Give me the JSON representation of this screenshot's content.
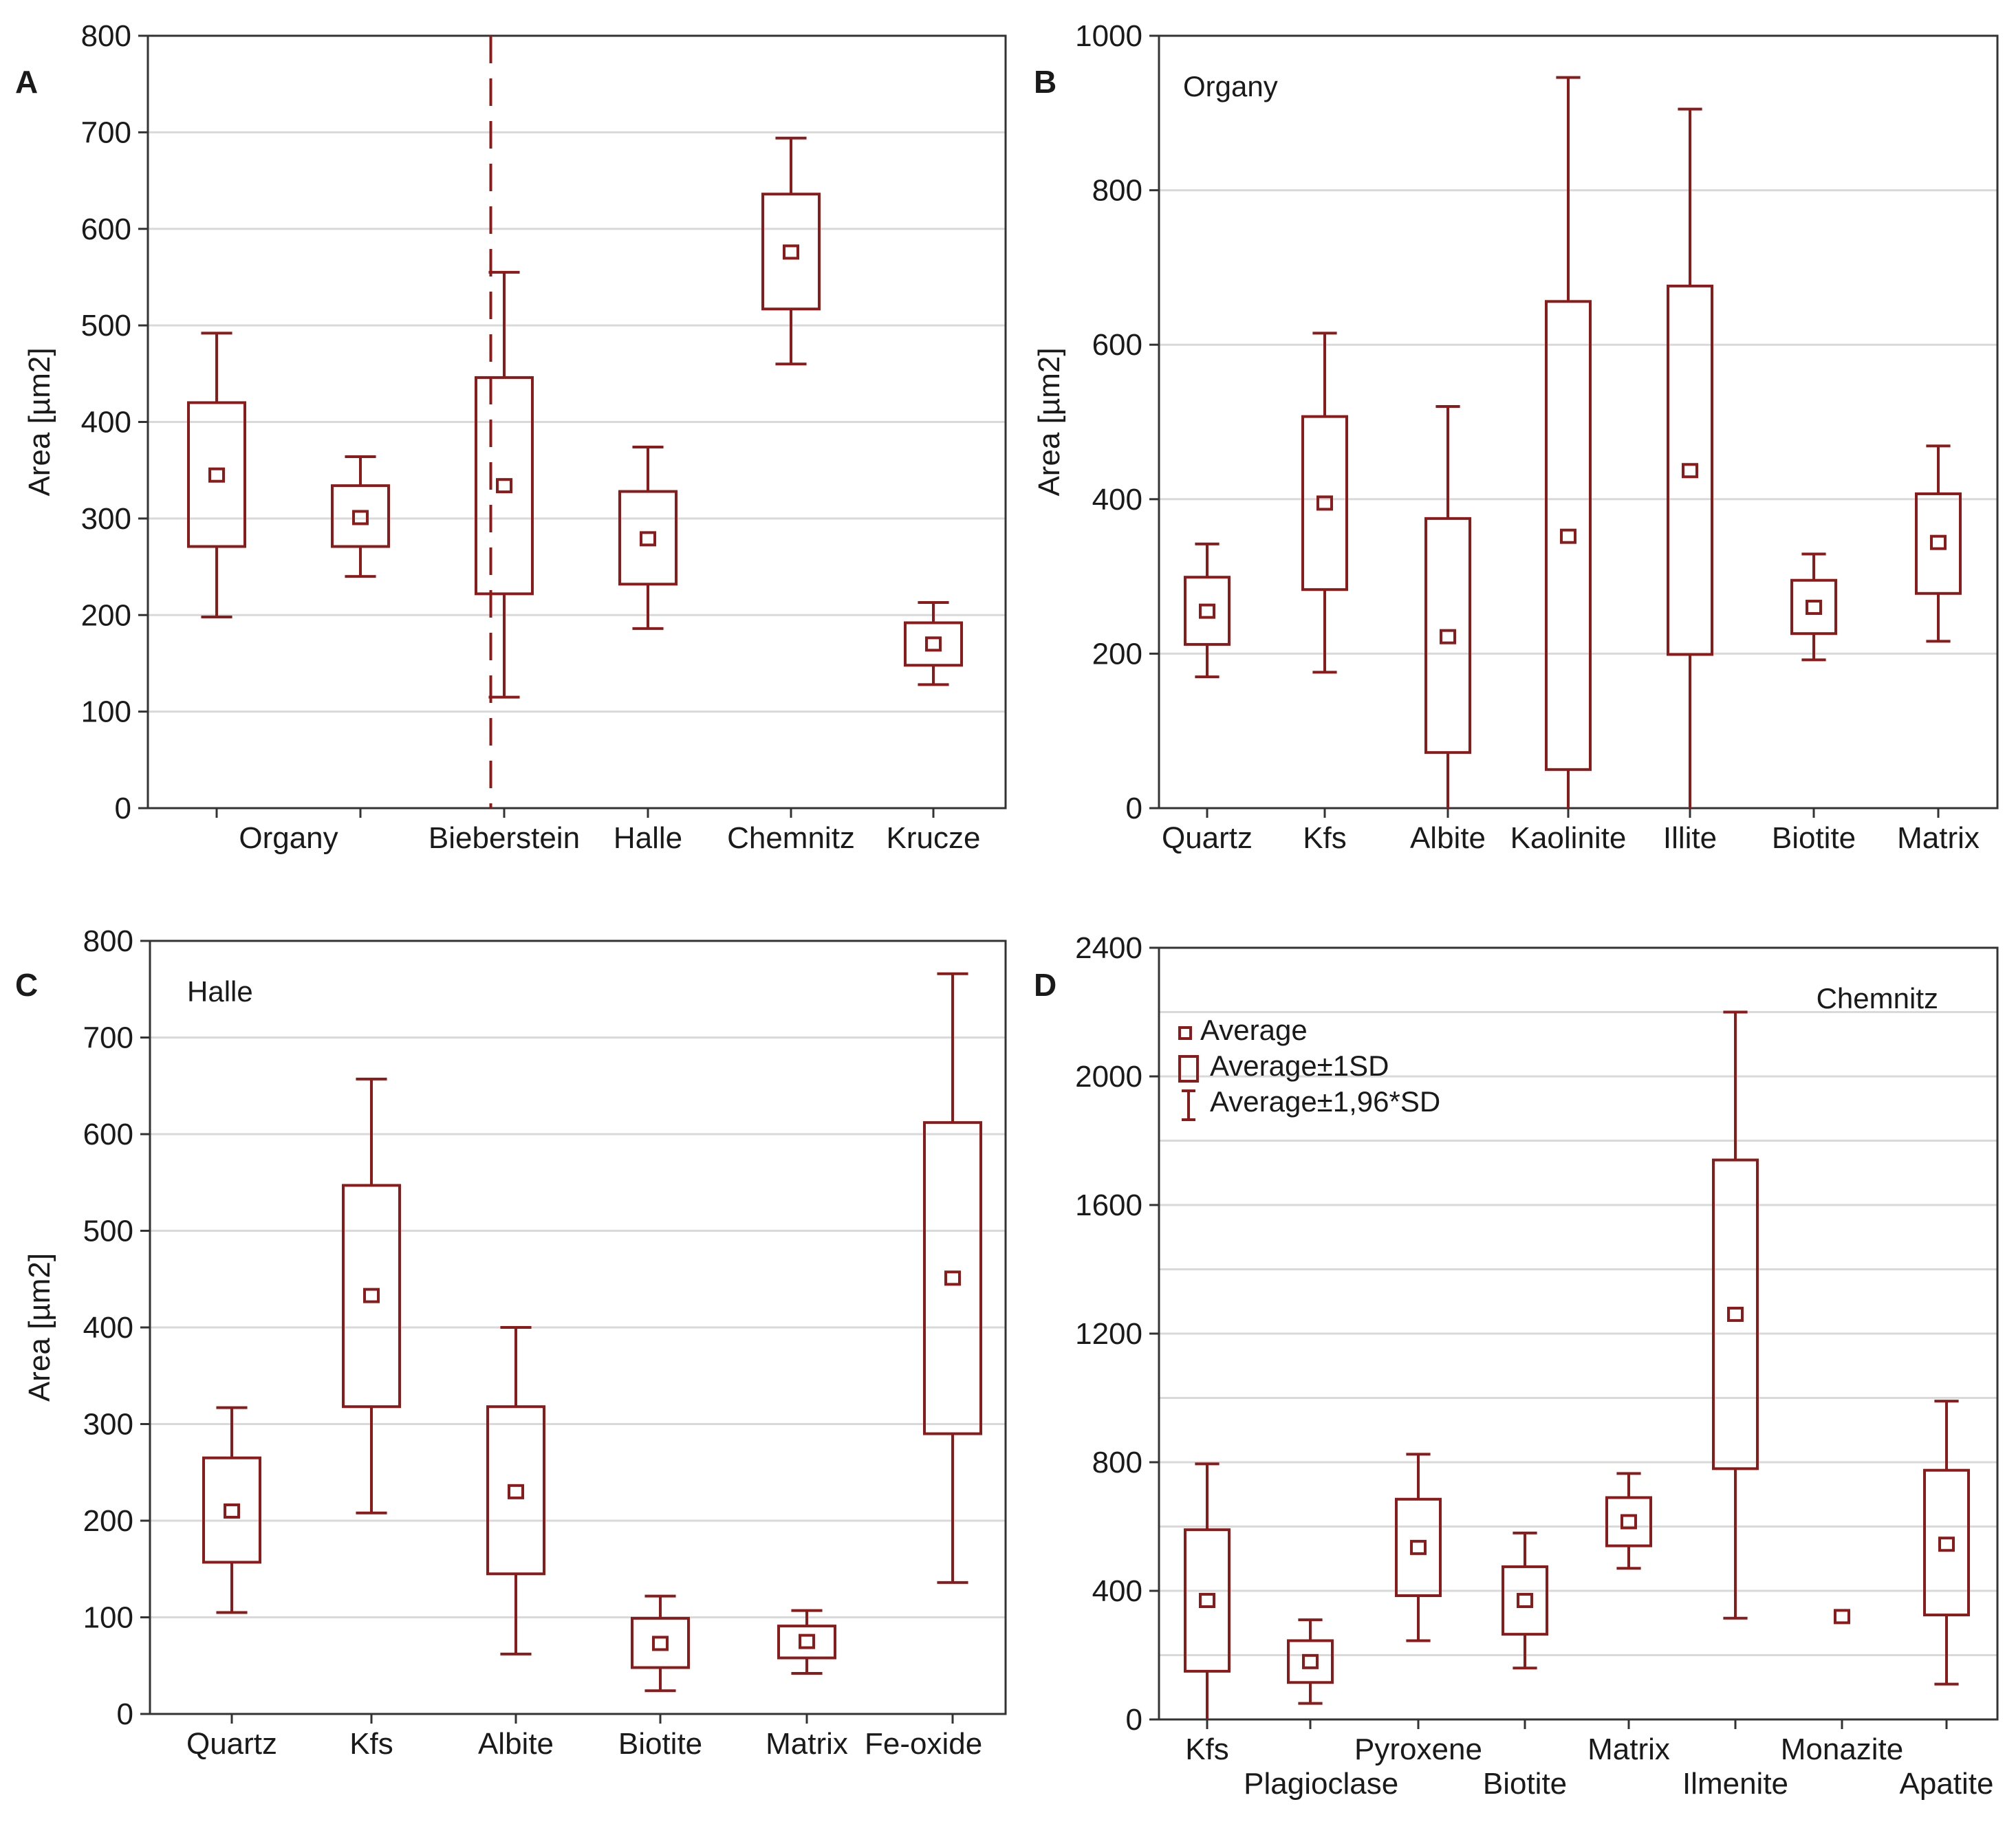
{
  "figure": {
    "colors": {
      "series": "#8b1a1a",
      "grid": "#d9d9d9",
      "axis": "#333333"
    }
  },
  "legend": {
    "items": [
      {
        "symbol": "mean-square",
        "label": "Average"
      },
      {
        "symbol": "box",
        "label": "Average±1SD"
      },
      {
        "symbol": "whisker",
        "label": "Average±1,96*SD"
      }
    ]
  },
  "chart_data": [
    {
      "id": "A",
      "panel_label": "A",
      "type": "box",
      "ylabel": "Area [µm2]",
      "ylim": [
        0,
        800
      ],
      "yticks": [
        0,
        100,
        200,
        300,
        400,
        500,
        600,
        700,
        800
      ],
      "grid": true,
      "annotation": "",
      "divider_after_index": 1,
      "categories": [
        "Organy",
        "",
        "Bieberstein",
        "Halle",
        "Chemnitz",
        "Krucze"
      ],
      "group_labels": [
        {
          "label": "Organy",
          "center": 0.5,
          "row": 1
        },
        {
          "label": "Bieberstein",
          "center": 2,
          "row": 1
        },
        {
          "label": "Halle",
          "center": 3,
          "row": 1
        },
        {
          "label": "Chemnitz",
          "center": 4,
          "row": 1
        },
        {
          "label": "Krucze",
          "center": 5,
          "row": 1
        }
      ],
      "series": [
        {
          "mean": 345,
          "q_low": 271,
          "q_high": 420,
          "w_low": 198,
          "w_high": 492
        },
        {
          "mean": 301,
          "q_low": 271,
          "q_high": 334,
          "w_low": 240,
          "w_high": 364
        },
        {
          "mean": 334,
          "q_low": 222,
          "q_high": 446,
          "w_low": 115,
          "w_high": 555
        },
        {
          "mean": 279,
          "q_low": 232,
          "q_high": 328,
          "w_low": 186,
          "w_high": 374
        },
        {
          "mean": 576,
          "q_low": 517,
          "q_high": 636,
          "w_low": 460,
          "w_high": 694
        },
        {
          "mean": 170,
          "q_low": 148,
          "q_high": 192,
          "w_low": 128,
          "w_high": 213
        }
      ]
    },
    {
      "id": "B",
      "panel_label": "B",
      "type": "box",
      "ylabel": "Area [µm2]",
      "ylim": [
        0,
        1000
      ],
      "yticks": [
        0,
        200,
        400,
        600,
        800,
        1000
      ],
      "grid": true,
      "annotation": "Organy",
      "divider_after_index": null,
      "categories": [
        "Quartz",
        "Kfs",
        "Albite",
        "Kaolinite",
        "Illite",
        "Biotite",
        "Matrix"
      ],
      "group_labels": [
        {
          "label": "Quartz",
          "center": 0,
          "row": 1
        },
        {
          "label": "Kfs",
          "center": 1,
          "row": 1
        },
        {
          "label": "Albite",
          "center": 2,
          "row": 1
        },
        {
          "label": "Kaolinite",
          "center": 3,
          "row": 1
        },
        {
          "label": "Illite",
          "center": 4,
          "row": 1
        },
        {
          "label": "Biotite",
          "center": 5,
          "row": 1
        },
        {
          "label": "Matrix",
          "center": 6,
          "row": 1
        }
      ],
      "series": [
        {
          "mean": 255,
          "q_low": 212,
          "q_high": 299,
          "w_low": 170,
          "w_high": 342
        },
        {
          "mean": 395,
          "q_low": 283,
          "q_high": 507,
          "w_low": 176,
          "w_high": 615
        },
        {
          "mean": 222,
          "q_low": 72,
          "q_high": 375,
          "w_low": 0,
          "w_high": 520
        },
        {
          "mean": 352,
          "q_low": 50,
          "q_high": 656,
          "w_low": 0,
          "w_high": 946
        },
        {
          "mean": 437,
          "q_low": 199,
          "q_high": 676,
          "w_low": 0,
          "w_high": 905
        },
        {
          "mean": 260,
          "q_low": 226,
          "q_high": 295,
          "w_low": 192,
          "w_high": 329
        },
        {
          "mean": 344,
          "q_low": 278,
          "q_high": 407,
          "w_low": 216,
          "w_high": 469
        }
      ]
    },
    {
      "id": "C",
      "panel_label": "C",
      "type": "box",
      "ylabel": "Area [µm2]",
      "ylim": [
        0,
        800
      ],
      "yticks": [
        0,
        100,
        200,
        300,
        400,
        500,
        600,
        700,
        800
      ],
      "grid": true,
      "annotation": "Halle",
      "divider_after_index": null,
      "categories": [
        "Quartz",
        "Kfs",
        "Albite",
        "Biotite",
        "Matrix",
        "Fe-oxide"
      ],
      "group_labels": [
        {
          "label": "Quartz",
          "center": 0,
          "row": 1
        },
        {
          "label": "Kfs",
          "center": 1,
          "row": 1
        },
        {
          "label": "Albite",
          "center": 2,
          "row": 1
        },
        {
          "label": "Biotite",
          "center": 3,
          "row": 1
        },
        {
          "label": "Matrix",
          "center": 4,
          "row": 1
        },
        {
          "label": "Fe-oxide",
          "center": 4.8,
          "row": 1
        }
      ],
      "series": [
        {
          "mean": 210,
          "q_low": 157,
          "q_high": 265,
          "w_low": 105,
          "w_high": 317
        },
        {
          "mean": 433,
          "q_low": 318,
          "q_high": 547,
          "w_low": 208,
          "w_high": 657
        },
        {
          "mean": 230,
          "q_low": 145,
          "q_high": 318,
          "w_low": 62,
          "w_high": 400
        },
        {
          "mean": 73,
          "q_low": 48,
          "q_high": 99,
          "w_low": 24,
          "w_high": 122
        },
        {
          "mean": 75,
          "q_low": 58,
          "q_high": 91,
          "w_low": 42,
          "w_high": 107
        },
        {
          "mean": 451,
          "q_low": 290,
          "q_high": 612,
          "w_low": 136,
          "w_high": 766
        }
      ]
    },
    {
      "id": "D",
      "panel_label": "D",
      "type": "box",
      "ylabel": "",
      "ylim": [
        0,
        2400
      ],
      "yticks": [
        0,
        400,
        800,
        1200,
        1600,
        2000,
        2400
      ],
      "grid_lines": [
        200,
        600,
        1000,
        1400,
        1800,
        2200
      ],
      "grid": true,
      "annotation": "Chemnitz",
      "divider_after_index": null,
      "categories": [
        "Kfs",
        "Plagioclase",
        "Pyroxene",
        "Biotite",
        "Matrix",
        "Ilmenite",
        "Monazite",
        "Apatite"
      ],
      "group_labels": [
        {
          "label": "Kfs",
          "center": 0,
          "row": 1
        },
        {
          "label": "Plagioclase",
          "center": 1.1,
          "row": 2
        },
        {
          "label": "Pyroxene",
          "center": 2,
          "row": 1
        },
        {
          "label": "Biotite",
          "center": 3,
          "row": 2
        },
        {
          "label": "Matrix",
          "center": 4,
          "row": 1
        },
        {
          "label": "Ilmenite",
          "center": 5,
          "row": 2
        },
        {
          "label": "Monazite",
          "center": 6,
          "row": 1
        },
        {
          "label": "Apatite",
          "center": 7,
          "row": 2
        }
      ],
      "series": [
        {
          "mean": 370,
          "q_low": 150,
          "q_high": 590,
          "w_low": 0,
          "w_high": 795
        },
        {
          "mean": 180,
          "q_low": 115,
          "q_high": 245,
          "w_low": 50,
          "w_high": 310
        },
        {
          "mean": 535,
          "q_low": 385,
          "q_high": 685,
          "w_low": 245,
          "w_high": 825
        },
        {
          "mean": 370,
          "q_low": 265,
          "q_high": 475,
          "w_low": 160,
          "w_high": 580
        },
        {
          "mean": 615,
          "q_low": 540,
          "q_high": 690,
          "w_low": 470,
          "w_high": 765
        },
        {
          "mean": 1260,
          "q_low": 780,
          "q_high": 1740,
          "w_low": 315,
          "w_high": 2200
        },
        {
          "mean": 320,
          "q_low": 320,
          "q_high": 320,
          "w_low": 320,
          "w_high": 320
        },
        {
          "mean": 545,
          "q_low": 325,
          "q_high": 775,
          "w_low": 110,
          "w_high": 990
        }
      ]
    }
  ]
}
